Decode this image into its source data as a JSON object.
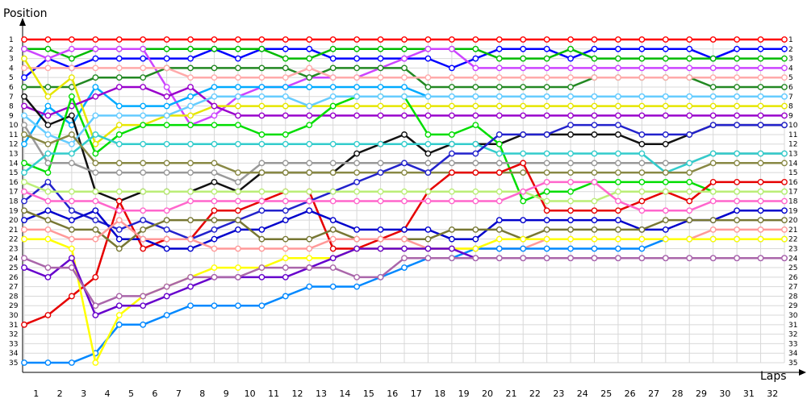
{
  "chart_data": {
    "type": "line",
    "title": "",
    "xlabel": "Laps",
    "ylabel": "Position",
    "x": [
      0,
      1,
      2,
      3,
      4,
      5,
      6,
      7,
      8,
      9,
      10,
      11,
      12,
      13,
      14,
      15,
      16,
      17,
      18,
      19,
      20,
      21,
      22,
      23,
      24,
      25,
      26,
      27,
      28,
      29,
      30,
      31,
      32
    ],
    "xtick_labels": [
      "1",
      "2",
      "3",
      "4",
      "5",
      "6",
      "7",
      "8",
      "9",
      "10",
      "11",
      "12",
      "13",
      "14",
      "15",
      "16",
      "17",
      "18",
      "19",
      "20",
      "21",
      "22",
      "23",
      "24",
      "25",
      "26",
      "27",
      "28",
      "29",
      "30",
      "31",
      "32"
    ],
    "ylim": [
      1,
      35
    ],
    "y_inverted": true,
    "ytick_labels": [
      "1",
      "2",
      "3",
      "4",
      "5",
      "6",
      "7",
      "8",
      "9",
      "10",
      "11",
      "12",
      "13",
      "14",
      "15",
      "16",
      "17",
      "18",
      "19",
      "20",
      "21",
      "22",
      "23",
      "24",
      "25",
      "26",
      "27",
      "28",
      "29",
      "30",
      "31",
      "32",
      "33",
      "34",
      "35"
    ],
    "grid": true,
    "legend": "none",
    "series": [
      {
        "color": "#ff0000",
        "values": [
          1,
          1,
          1,
          1,
          1,
          1,
          1,
          1,
          1,
          1,
          1,
          1,
          1,
          1,
          1,
          1,
          1,
          1,
          1,
          1,
          1,
          1,
          1,
          1,
          1,
          1,
          1,
          1,
          1,
          1,
          1,
          1,
          1
        ]
      },
      {
        "color": "#0000ff",
        "values": [
          5,
          3,
          4,
          3,
          3,
          3,
          3,
          3,
          2,
          3,
          2,
          2,
          2,
          3,
          3,
          3,
          3,
          3,
          4,
          3,
          2,
          2,
          2,
          3,
          2,
          2,
          2,
          2,
          2,
          3,
          2,
          2,
          2
        ]
      },
      {
        "color": "#00bb00",
        "values": [
          2,
          2,
          3,
          2,
          2,
          2,
          2,
          2,
          2,
          2,
          2,
          3,
          3,
          2,
          2,
          2,
          2,
          2,
          2,
          2,
          3,
          3,
          3,
          2,
          3,
          3,
          3,
          3,
          3,
          3,
          3,
          3,
          3
        ]
      },
      {
        "color": "#cc44ff",
        "values": [
          2,
          3,
          2,
          2,
          2,
          2,
          6,
          10,
          9,
          7,
          6,
          6,
          5,
          5,
          5,
          4,
          3,
          2,
          2,
          4,
          4,
          4,
          4,
          4,
          4,
          4,
          4,
          4,
          4,
          4,
          4,
          4,
          4
        ]
      },
      {
        "color": "#228822",
        "values": [
          6,
          6,
          6,
          5,
          5,
          5,
          4,
          4,
          4,
          4,
          4,
          4,
          5,
          4,
          4,
          4,
          4,
          6,
          6,
          6,
          6,
          6,
          6,
          6,
          5,
          5,
          5,
          5,
          5,
          6,
          6,
          6,
          6
        ]
      },
      {
        "color": "#ffaaaa",
        "values": [
          4,
          4,
          4,
          4,
          4,
          4,
          4,
          5,
          5,
          5,
          5,
          5,
          4,
          5,
          5,
          5,
          5,
          5,
          5,
          5,
          5,
          5,
          5,
          5,
          5,
          5,
          5,
          5,
          5,
          5,
          5,
          5,
          5
        ]
      },
      {
        "color": "#00aaff",
        "values": [
          12,
          8,
          10,
          6,
          8,
          8,
          8,
          7,
          6,
          6,
          6,
          6,
          6,
          6,
          6,
          6,
          6,
          7,
          7,
          7,
          7,
          7,
          7,
          7,
          7,
          7,
          7,
          7,
          7,
          7,
          7,
          7,
          7
        ]
      },
      {
        "color": "#e6e600",
        "values": [
          3,
          7,
          5,
          12,
          10,
          10,
          9,
          9,
          8,
          8,
          8,
          8,
          8,
          8,
          8,
          8,
          8,
          8,
          8,
          8,
          8,
          8,
          8,
          8,
          8,
          8,
          8,
          8,
          8,
          8,
          8,
          8,
          8
        ]
      },
      {
        "color": "#9900cc",
        "values": [
          8,
          9,
          8,
          7,
          6,
          6,
          7,
          6,
          8,
          9,
          9,
          9,
          9,
          9,
          9,
          9,
          9,
          9,
          9,
          9,
          9,
          9,
          9,
          9,
          9,
          9,
          9,
          9,
          9,
          9,
          9,
          9,
          9
        ]
      },
      {
        "color": "#111111",
        "values": [
          7,
          10,
          9,
          17,
          18,
          17,
          17,
          17,
          16,
          17,
          15,
          15,
          15,
          15,
          13,
          12,
          11,
          13,
          12,
          12,
          12,
          11,
          11,
          11,
          11,
          11,
          12,
          12,
          11,
          10,
          10,
          10,
          10
        ]
      },
      {
        "color": "#00dd00",
        "values": [
          14,
          15,
          7,
          13,
          11,
          10,
          10,
          10,
          10,
          10,
          11,
          11,
          10,
          8,
          7,
          7,
          7,
          11,
          11,
          10,
          12,
          18,
          17,
          17,
          16,
          16,
          16,
          16,
          16,
          17,
          17,
          17,
          17
        ]
      },
      {
        "color": "#66ccff",
        "values": [
          9,
          11,
          12,
          9,
          9,
          9,
          9,
          8,
          7,
          7,
          7,
          7,
          8,
          7,
          7,
          7,
          7,
          7,
          7,
          7,
          7,
          7,
          7,
          7,
          7,
          7,
          7,
          7,
          7,
          7,
          7,
          7,
          7
        ]
      },
      {
        "color": "#999999",
        "values": [
          10,
          14,
          14,
          15,
          15,
          15,
          15,
          15,
          15,
          16,
          14,
          14,
          14,
          14,
          14,
          14,
          14,
          14,
          14,
          14,
          14,
          14,
          14,
          14,
          14,
          14,
          14,
          14,
          14,
          13,
          13,
          13,
          13
        ]
      },
      {
        "color": "#33cccc",
        "values": [
          15,
          13,
          13,
          11,
          12,
          12,
          12,
          12,
          12,
          12,
          12,
          12,
          12,
          12,
          12,
          12,
          12,
          12,
          12,
          12,
          13,
          13,
          13,
          13,
          13,
          13,
          13,
          15,
          14,
          13,
          13,
          13,
          13
        ]
      },
      {
        "color": "#888844",
        "values": [
          11,
          12,
          11,
          14,
          14,
          14,
          14,
          14,
          14,
          15,
          15,
          15,
          15,
          15,
          15,
          15,
          15,
          15,
          15,
          15,
          15,
          15,
          15,
          15,
          15,
          15,
          15,
          15,
          15,
          14,
          14,
          14,
          14
        ]
      },
      {
        "color": "#e60000",
        "values": [
          31,
          30,
          28,
          26,
          18,
          23,
          22,
          22,
          19,
          19,
          18,
          17,
          17,
          23,
          23,
          22,
          21,
          17,
          15,
          15,
          15,
          14,
          19,
          19,
          19,
          19,
          18,
          17,
          18,
          16,
          16,
          16,
          16
        ]
      },
      {
        "color": "#2222cc",
        "values": [
          18,
          16,
          19,
          20,
          21,
          20,
          21,
          22,
          21,
          20,
          19,
          19,
          18,
          17,
          16,
          15,
          14,
          15,
          13,
          13,
          11,
          11,
          11,
          10,
          10,
          10,
          11,
          11,
          11,
          10,
          10,
          10,
          10
        ]
      },
      {
        "color": "#bbee77",
        "values": [
          16,
          17,
          17,
          17,
          17,
          17,
          17,
          17,
          17,
          17,
          17,
          17,
          17,
          17,
          17,
          17,
          17,
          17,
          17,
          17,
          17,
          17,
          18,
          18,
          18,
          17,
          17,
          17,
          17,
          17,
          17,
          17,
          17
        ]
      },
      {
        "color": "#ff66cc",
        "values": [
          17,
          18,
          18,
          18,
          19,
          19,
          19,
          18,
          18,
          18,
          18,
          18,
          18,
          18,
          18,
          18,
          18,
          18,
          18,
          18,
          18,
          17,
          16,
          16,
          16,
          18,
          19,
          19,
          19,
          18,
          18,
          18,
          18
        ]
      },
      {
        "color": "#0000cc",
        "values": [
          20,
          19,
          20,
          19,
          22,
          22,
          23,
          23,
          22,
          21,
          21,
          20,
          19,
          20,
          21,
          21,
          21,
          21,
          22,
          22,
          20,
          20,
          20,
          20,
          20,
          20,
          21,
          21,
          20,
          20,
          19,
          19,
          19
        ]
      },
      {
        "color": "#777733",
        "values": [
          19,
          20,
          21,
          21,
          23,
          21,
          20,
          20,
          20,
          20,
          22,
          22,
          22,
          21,
          22,
          22,
          22,
          22,
          21,
          21,
          21,
          22,
          21,
          21,
          21,
          21,
          21,
          20,
          20,
          20,
          20,
          20,
          20
        ]
      },
      {
        "color": "#ff9999",
        "values": [
          21,
          21,
          22,
          22,
          20,
          22,
          22,
          22,
          23,
          23,
          23,
          23,
          23,
          22,
          22,
          22,
          22,
          23,
          23,
          23,
          23,
          23,
          22,
          22,
          22,
          22,
          22,
          22,
          22,
          21,
          21,
          21,
          21
        ]
      },
      {
        "color": "#0088ff",
        "values": [
          35,
          35,
          35,
          34,
          31,
          31,
          30,
          29,
          29,
          29,
          29,
          28,
          27,
          27,
          27,
          26,
          25,
          24,
          24,
          23,
          23,
          23,
          23,
          23,
          23,
          23,
          23,
          22,
          22,
          22,
          22,
          22,
          22
        ]
      },
      {
        "color": "#ffff00",
        "values": [
          22,
          22,
          23,
          35,
          30,
          28,
          27,
          26,
          25,
          25,
          25,
          24,
          24,
          24,
          23,
          23,
          23,
          23,
          23,
          23,
          22,
          22,
          22,
          22,
          22,
          22,
          22,
          22,
          22,
          22,
          22,
          22,
          22
        ]
      },
      {
        "color": "#6600cc",
        "values": [
          25,
          26,
          24,
          30,
          29,
          29,
          28,
          27,
          26,
          26,
          26,
          26,
          25,
          24,
          23,
          23,
          23,
          23,
          23,
          24,
          24,
          24,
          24,
          24,
          24,
          24,
          24,
          24,
          24,
          24,
          24,
          24,
          24
        ]
      },
      {
        "color": "#aa66aa",
        "values": [
          24,
          25,
          25,
          29,
          28,
          28,
          27,
          26,
          26,
          26,
          25,
          25,
          25,
          25,
          26,
          26,
          24,
          24,
          24,
          24,
          24,
          24,
          24,
          24,
          24,
          24,
          24,
          24,
          24,
          24,
          24,
          24,
          24
        ]
      }
    ]
  }
}
